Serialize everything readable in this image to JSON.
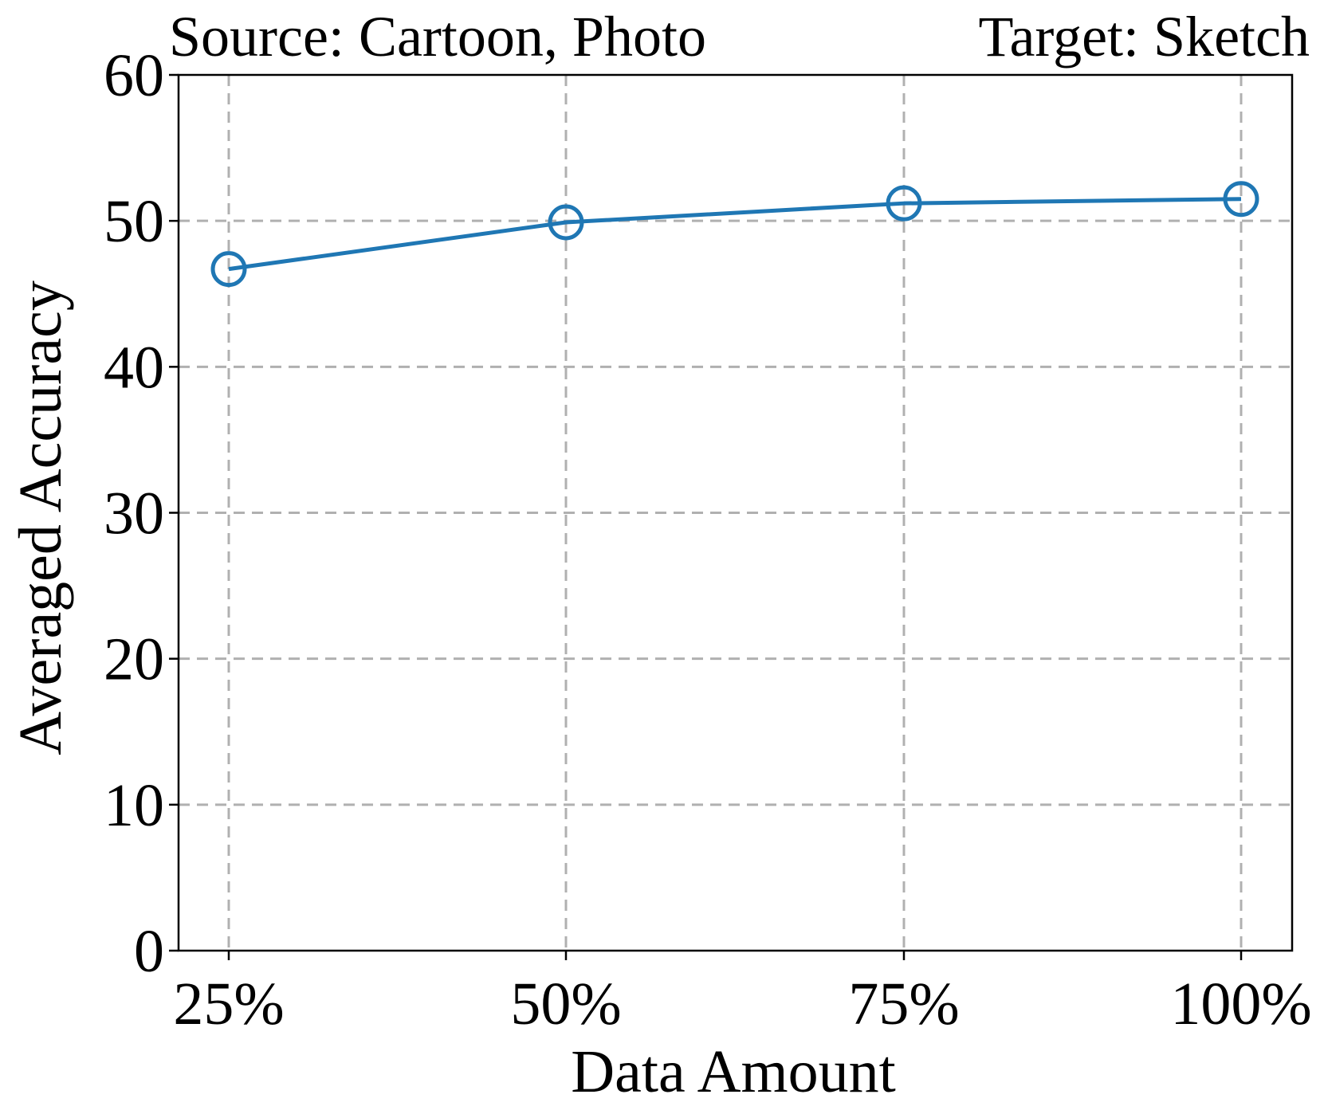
{
  "chart_data": {
    "type": "line",
    "title_left": "Source: Cartoon, Photo",
    "title_right": "Target: Sketch",
    "xlabel": "Data Amount",
    "ylabel": "Averaged Accuracy",
    "categories": [
      "25%",
      "50%",
      "75%",
      "100%"
    ],
    "series": [
      {
        "values": [
          46.7,
          49.9,
          51.2,
          51.5
        ],
        "color": "#1f77b4",
        "marker": "open-circle"
      }
    ],
    "ylim": [
      0,
      60
    ],
    "yticks": [
      0,
      10,
      20,
      30,
      40,
      50,
      60
    ],
    "grid": true,
    "grid_style": "dashed",
    "grid_color": "#b0b0b0"
  }
}
